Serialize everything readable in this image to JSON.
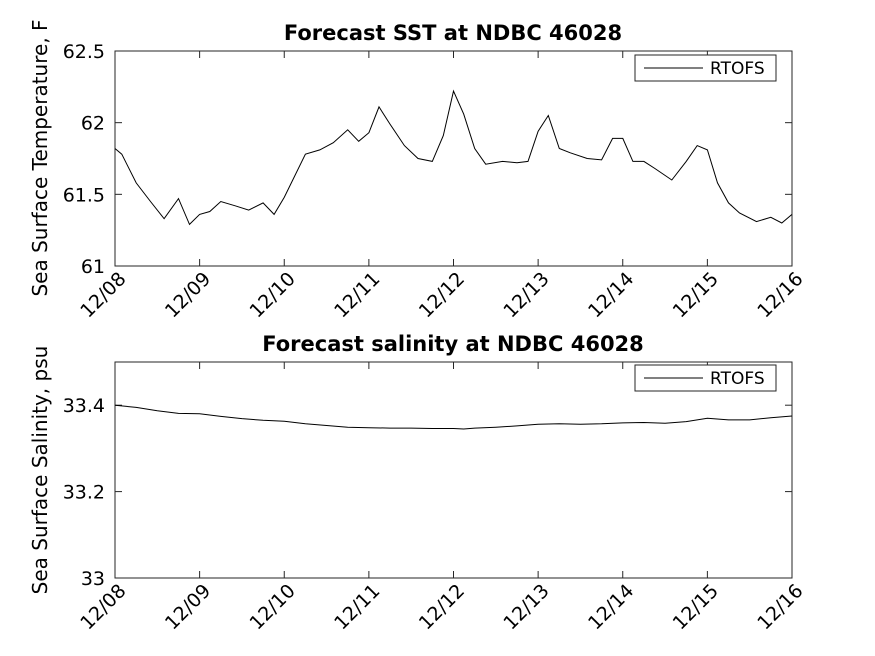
{
  "chart_data": [
    {
      "type": "line",
      "title": "Forecast SST at NDBC 46028",
      "ylabel": "Sea Surface Temperature, F",
      "xlabel": "",
      "categories": [
        "12/08",
        "12/09",
        "12/10",
        "12/11",
        "12/12",
        "12/13",
        "12/14",
        "12/15",
        "12/16"
      ],
      "xlim": [
        0,
        8
      ],
      "ylim": [
        61,
        62.5
      ],
      "yticks": [
        "61",
        "61.5",
        "62",
        "62.5"
      ],
      "legend": "top-right",
      "grid": false,
      "series": [
        {
          "name": "RTOFS",
          "color": "#000000",
          "x": [
            0,
            0.08,
            0.25,
            0.42,
            0.58,
            0.75,
            0.88,
            1.0,
            1.12,
            1.25,
            1.42,
            1.58,
            1.75,
            1.88,
            2.0,
            2.25,
            2.42,
            2.58,
            2.75,
            2.88,
            3.0,
            3.12,
            3.25,
            3.42,
            3.58,
            3.75,
            3.88,
            4.0,
            4.12,
            4.25,
            4.38,
            4.58,
            4.75,
            4.88,
            5.0,
            5.12,
            5.25,
            5.38,
            5.58,
            5.75,
            5.88,
            6.0,
            6.12,
            6.25,
            6.38,
            6.58,
            6.75,
            6.88,
            7.0,
            7.12,
            7.25,
            7.38,
            7.58,
            7.75,
            7.88,
            8.0
          ],
          "values": [
            61.82,
            61.78,
            61.58,
            61.45,
            61.33,
            61.47,
            61.29,
            61.36,
            61.38,
            61.45,
            61.42,
            61.39,
            61.44,
            61.36,
            61.48,
            61.78,
            61.81,
            61.86,
            61.95,
            61.87,
            61.93,
            62.11,
            61.99,
            61.84,
            61.75,
            61.73,
            61.91,
            62.22,
            62.06,
            61.82,
            61.71,
            61.73,
            61.72,
            61.73,
            61.94,
            62.05,
            61.82,
            61.79,
            61.75,
            61.74,
            61.89,
            61.89,
            61.73,
            61.73,
            61.68,
            61.6,
            61.73,
            61.84,
            61.81,
            61.58,
            61.44,
            61.37,
            61.31,
            61.34,
            61.3,
            61.36
          ]
        }
      ]
    },
    {
      "type": "line",
      "title": "Forecast salinity at NDBC 46028",
      "ylabel": "Sea Surface Salinity, psu",
      "xlabel": "",
      "categories": [
        "12/08",
        "12/09",
        "12/10",
        "12/11",
        "12/12",
        "12/13",
        "12/14",
        "12/15",
        "12/16"
      ],
      "xlim": [
        0,
        8
      ],
      "ylim": [
        33,
        33.5
      ],
      "yticks": [
        "33",
        "33.2",
        "33.4"
      ],
      "legend": "top-right",
      "grid": false,
      "series": [
        {
          "name": "RTOFS",
          "color": "#000000",
          "x": [
            0,
            0.25,
            0.5,
            0.75,
            1.0,
            1.25,
            1.5,
            1.75,
            2.0,
            2.25,
            2.5,
            2.75,
            3.0,
            3.25,
            3.5,
            3.75,
            4.0,
            4.12,
            4.25,
            4.5,
            4.75,
            5.0,
            5.25,
            5.5,
            5.75,
            6.0,
            6.25,
            6.5,
            6.75,
            7.0,
            7.25,
            7.5,
            7.75,
            8.0
          ],
          "values": [
            33.4,
            33.395,
            33.387,
            33.381,
            33.38,
            33.374,
            33.369,
            33.365,
            33.363,
            33.357,
            33.353,
            33.349,
            33.348,
            33.347,
            33.347,
            33.346,
            33.346,
            33.345,
            33.347,
            33.349,
            33.352,
            33.356,
            33.357,
            33.356,
            33.357,
            33.359,
            33.36,
            33.358,
            33.362,
            33.37,
            33.366,
            33.366,
            33.371,
            33.375
          ]
        }
      ]
    }
  ]
}
